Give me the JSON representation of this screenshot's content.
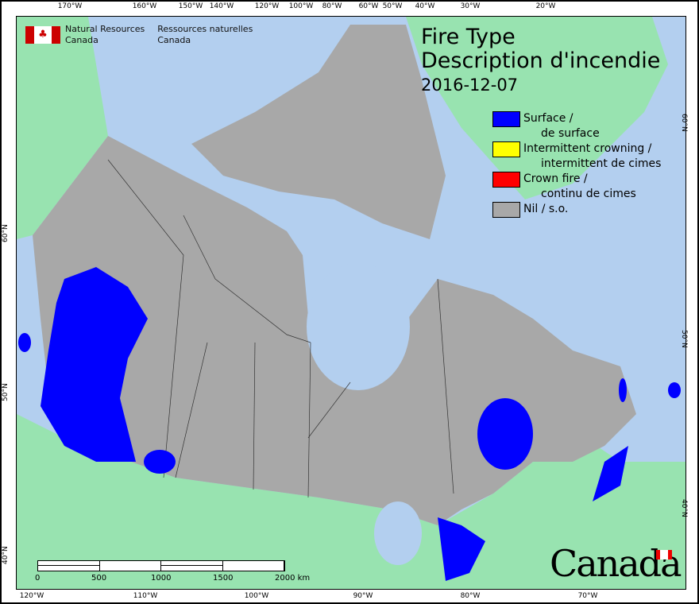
{
  "header": {
    "agency_en": [
      "Natural Resources",
      "Canada"
    ],
    "agency_fr": [
      "Ressources naturelles",
      "Canada"
    ]
  },
  "title": {
    "line1": "Fire Type",
    "line2": "Description d'incendie",
    "date": "2016-12-07"
  },
  "legend": [
    {
      "en": "Surface /",
      "fr": "de surface",
      "color": "#0000ff"
    },
    {
      "en": "Intermittent crowning /",
      "fr": "intermittent de cimes",
      "color": "#ffff00"
    },
    {
      "en": "Crown fire /",
      "fr": "continu de cimes",
      "color": "#ff0000"
    },
    {
      "en": "Nil / s.o.",
      "fr": "",
      "color": "#a8a8a8"
    }
  ],
  "graticule": {
    "top": [
      "170°W",
      "160°W",
      "150°W",
      "140°W",
      "120°W",
      "100°W",
      "80°W",
      "60°W",
      "50°W",
      "40°W",
      "30°W",
      "20°W"
    ],
    "bottom": [
      "120°W",
      "110°W",
      "100°W",
      "90°W",
      "80°W",
      "70°W"
    ],
    "left": [
      "60°N",
      "50°N",
      "40°N"
    ],
    "right": [
      "60°N",
      "50°N",
      "40°N"
    ]
  },
  "scale_bar": {
    "labels": [
      "0",
      "500",
      "1000",
      "1500",
      "2000 km"
    ]
  },
  "wordmark": "Canada",
  "colors": {
    "water": "#b3cfef",
    "foreign_land": "#98e3b0",
    "canada_land": "#a8a8a8",
    "surface_fire": "#0000ff"
  }
}
